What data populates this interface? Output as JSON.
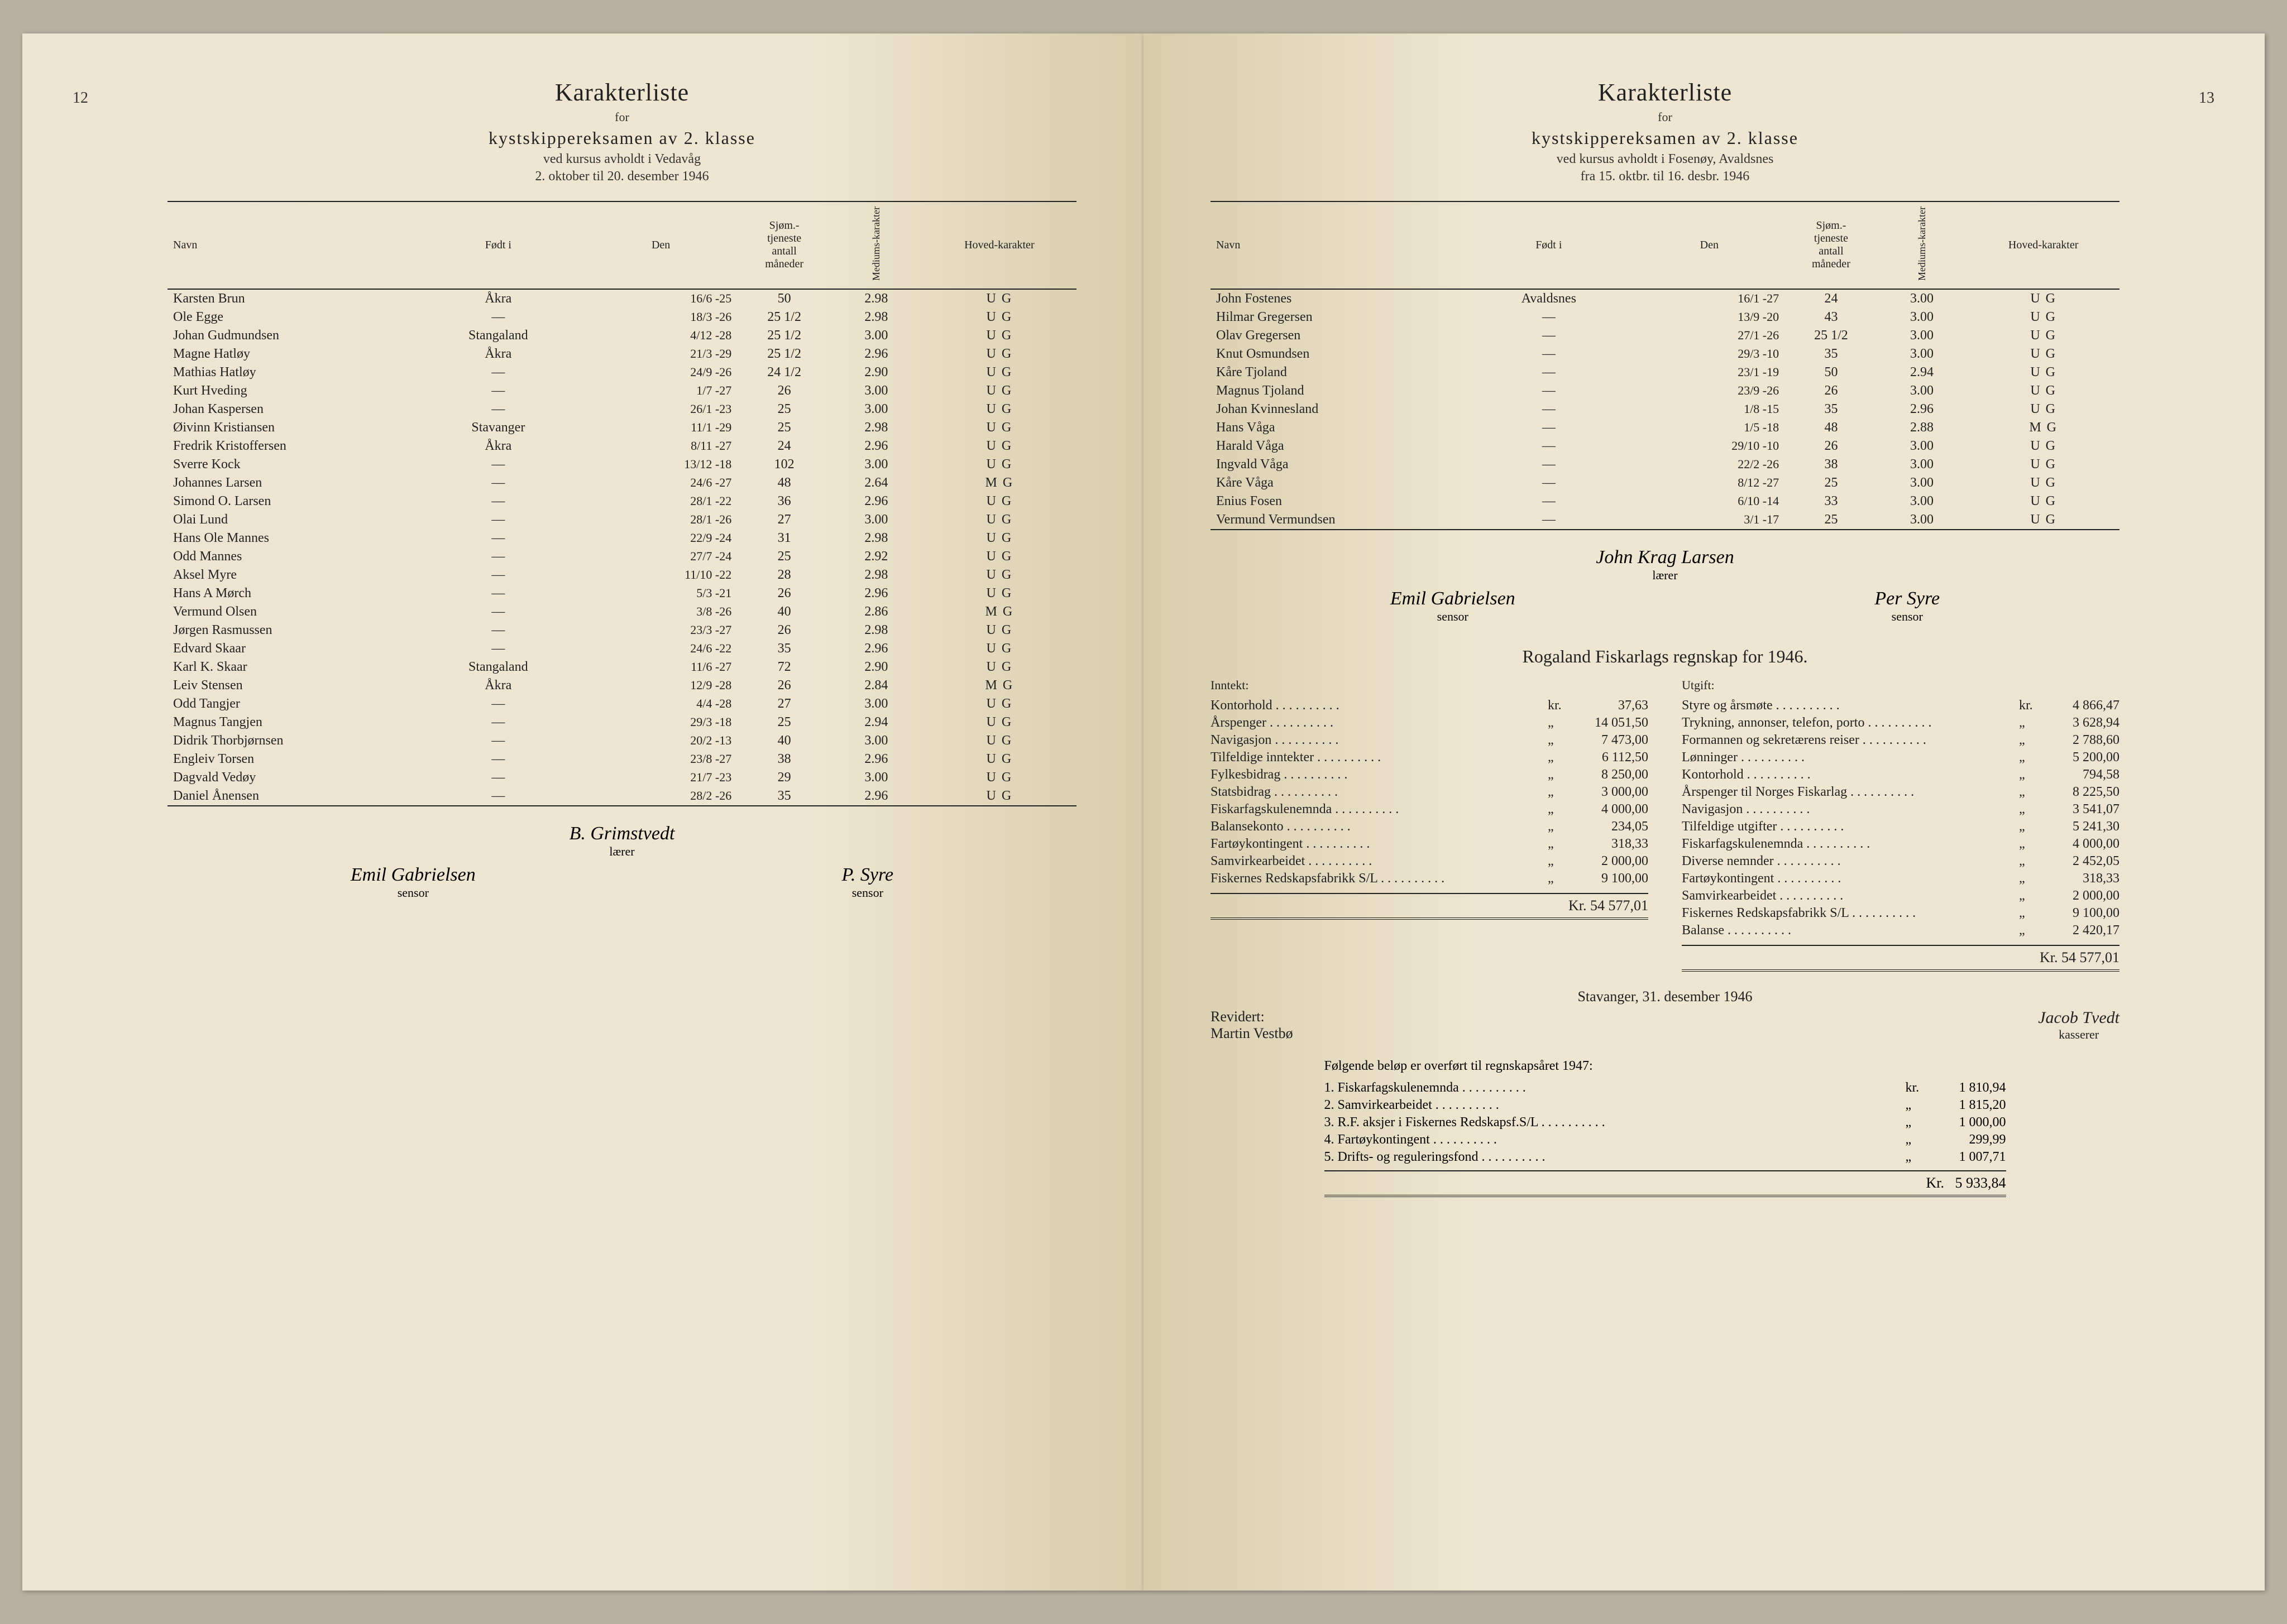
{
  "left": {
    "page_num": "12",
    "title": "Karakterliste",
    "for": "for",
    "subtitle": "kystskippereksamen av 2. klasse",
    "line1": "ved kursus avholdt i Vedavåg",
    "line2": "2. oktober til 20. desember 1946",
    "columns": {
      "navn": "Navn",
      "fodt": "Født i",
      "den": "Den",
      "mnd_top": "Sjøm.-",
      "mnd_mid": "tjeneste",
      "mnd_bot": "antall",
      "mnd_last": "måneder",
      "medium": "Mediums-karakter",
      "hoved": "Hoved-karakter"
    },
    "rows": [
      {
        "n": "Karsten Brun",
        "f": "Åkra",
        "d": "16/6 -25",
        "m": "50",
        "med": "2.98",
        "hk": "U G"
      },
      {
        "n": "Ole Egge",
        "f": "—",
        "d": "18/3 -26",
        "m": "25 1/2",
        "med": "2.98",
        "hk": "U G"
      },
      {
        "n": "Johan Gudmundsen",
        "f": "Stangaland",
        "d": "4/12 -28",
        "m": "25 1/2",
        "med": "3.00",
        "hk": "U G"
      },
      {
        "n": "Magne Hatløy",
        "f": "Åkra",
        "d": "21/3 -29",
        "m": "25 1/2",
        "med": "2.96",
        "hk": "U G"
      },
      {
        "n": "Mathias Hatløy",
        "f": "—",
        "d": "24/9 -26",
        "m": "24 1/2",
        "med": "2.90",
        "hk": "U G"
      },
      {
        "n": "Kurt Hveding",
        "f": "—",
        "d": "1/7 -27",
        "m": "26",
        "med": "3.00",
        "hk": "U G"
      },
      {
        "n": "Johan Kaspersen",
        "f": "—",
        "d": "26/1 -23",
        "m": "25",
        "med": "3.00",
        "hk": "U G"
      },
      {
        "n": "Øivinn Kristiansen",
        "f": "Stavanger",
        "d": "11/1 -29",
        "m": "25",
        "med": "2.98",
        "hk": "U G"
      },
      {
        "n": "Fredrik Kristoffersen",
        "f": "Åkra",
        "d": "8/11 -27",
        "m": "24",
        "med": "2.96",
        "hk": "U G"
      },
      {
        "n": "Sverre Kock",
        "f": "—",
        "d": "13/12 -18",
        "m": "102",
        "med": "3.00",
        "hk": "U G"
      },
      {
        "n": "Johannes Larsen",
        "f": "—",
        "d": "24/6 -27",
        "m": "48",
        "med": "2.64",
        "hk": "M G"
      },
      {
        "n": "Simond O. Larsen",
        "f": "—",
        "d": "28/1 -22",
        "m": "36",
        "med": "2.96",
        "hk": "U G"
      },
      {
        "n": "Olai Lund",
        "f": "—",
        "d": "28/1 -26",
        "m": "27",
        "med": "3.00",
        "hk": "U G"
      },
      {
        "n": "Hans Ole Mannes",
        "f": "—",
        "d": "22/9 -24",
        "m": "31",
        "med": "2.98",
        "hk": "U G"
      },
      {
        "n": "Odd Mannes",
        "f": "—",
        "d": "27/7 -24",
        "m": "25",
        "med": "2.92",
        "hk": "U G"
      },
      {
        "n": "Aksel Myre",
        "f": "—",
        "d": "11/10 -22",
        "m": "28",
        "med": "2.98",
        "hk": "U G"
      },
      {
        "n": "Hans A Mørch",
        "f": "—",
        "d": "5/3 -21",
        "m": "26",
        "med": "2.96",
        "hk": "U G"
      },
      {
        "n": "Vermund Olsen",
        "f": "—",
        "d": "3/8 -26",
        "m": "40",
        "med": "2.86",
        "hk": "M G"
      },
      {
        "n": "Jørgen Rasmussen",
        "f": "—",
        "d": "23/3 -27",
        "m": "26",
        "med": "2.98",
        "hk": "U G"
      },
      {
        "n": "Edvard Skaar",
        "f": "—",
        "d": "24/6 -22",
        "m": "35",
        "med": "2.96",
        "hk": "U G"
      },
      {
        "n": "Karl K. Skaar",
        "f": "Stangaland",
        "d": "11/6 -27",
        "m": "72",
        "med": "2.90",
        "hk": "U G"
      },
      {
        "n": "Leiv Stensen",
        "f": "Åkra",
        "d": "12/9 -28",
        "m": "26",
        "med": "2.84",
        "hk": "M G"
      },
      {
        "n": "Odd Tangjer",
        "f": "—",
        "d": "4/4 -28",
        "m": "27",
        "med": "3.00",
        "hk": "U G"
      },
      {
        "n": "Magnus Tangjen",
        "f": "—",
        "d": "29/3 -18",
        "m": "25",
        "med": "2.94",
        "hk": "U G"
      },
      {
        "n": "Didrik Thorbjørnsen",
        "f": "—",
        "d": "20/2 -13",
        "m": "40",
        "med": "3.00",
        "hk": "U G"
      },
      {
        "n": "Engleiv Torsen",
        "f": "—",
        "d": "23/8 -27",
        "m": "38",
        "med": "2.96",
        "hk": "U G"
      },
      {
        "n": "Dagvald Vedøy",
        "f": "—",
        "d": "21/7 -23",
        "m": "29",
        "med": "3.00",
        "hk": "U G"
      },
      {
        "n": "Daniel Ånensen",
        "f": "—",
        "d": "28/2 -26",
        "m": "35",
        "med": "2.96",
        "hk": "U G"
      }
    ],
    "teacher": {
      "name": "B. Grimstvedt",
      "role": "lærer"
    },
    "sensors": [
      {
        "name": "Emil Gabrielsen",
        "role": "sensor"
      },
      {
        "name": "P. Syre",
        "role": "sensor"
      }
    ]
  },
  "right": {
    "page_num": "13",
    "title": "Karakterliste",
    "for": "for",
    "subtitle": "kystskippereksamen av 2. klasse",
    "line1": "ved kursus avholdt i Fosenøy, Avaldsnes",
    "line2": "fra 15. oktbr. til 16. desbr. 1946",
    "rows": [
      {
        "n": "John Fostenes",
        "f": "Avaldsnes",
        "d": "16/1 -27",
        "m": "24",
        "med": "3.00",
        "hk": "U G"
      },
      {
        "n": "Hilmar Gregersen",
        "f": "—",
        "d": "13/9 -20",
        "m": "43",
        "med": "3.00",
        "hk": "U G"
      },
      {
        "n": "Olav Gregersen",
        "f": "—",
        "d": "27/1 -26",
        "m": "25 1/2",
        "med": "3.00",
        "hk": "U G"
      },
      {
        "n": "Knut Osmundsen",
        "f": "—",
        "d": "29/3 -10",
        "m": "35",
        "med": "3.00",
        "hk": "U G"
      },
      {
        "n": "Kåre Tjoland",
        "f": "—",
        "d": "23/1 -19",
        "m": "50",
        "med": "2.94",
        "hk": "U G"
      },
      {
        "n": "Magnus Tjoland",
        "f": "—",
        "d": "23/9 -26",
        "m": "26",
        "med": "3.00",
        "hk": "U G"
      },
      {
        "n": "Johan Kvinnesland",
        "f": "—",
        "d": "1/8 -15",
        "m": "35",
        "med": "2.96",
        "hk": "U G"
      },
      {
        "n": "Hans Våga",
        "f": "—",
        "d": "1/5 -18",
        "m": "48",
        "med": "2.88",
        "hk": "M G"
      },
      {
        "n": "Harald Våga",
        "f": "—",
        "d": "29/10 -10",
        "m": "26",
        "med": "3.00",
        "hk": "U G"
      },
      {
        "n": "Ingvald Våga",
        "f": "—",
        "d": "22/2 -26",
        "m": "38",
        "med": "3.00",
        "hk": "U G"
      },
      {
        "n": "Kåre Våga",
        "f": "—",
        "d": "8/12 -27",
        "m": "25",
        "med": "3.00",
        "hk": "U G"
      },
      {
        "n": "Enius Fosen",
        "f": "—",
        "d": "6/10 -14",
        "m": "33",
        "med": "3.00",
        "hk": "U G"
      },
      {
        "n": "Vermund Vermundsen",
        "f": "—",
        "d": "3/1 -17",
        "m": "25",
        "med": "3.00",
        "hk": "U G"
      }
    ],
    "teacher": {
      "name": "John Krag Larsen",
      "role": "lærer"
    },
    "sensors": [
      {
        "name": "Emil Gabrielsen",
        "role": "sensor"
      },
      {
        "name": "Per Syre",
        "role": "sensor"
      }
    ],
    "regnskap_title": "Rogaland Fiskarlags regnskap for 1946.",
    "inntekt_hdr": "Inntekt:",
    "utgift_hdr": "Utgift:",
    "inntekt": [
      {
        "l": "Kontorhold",
        "c": "kr.",
        "a": "37,63"
      },
      {
        "l": "Årspenger",
        "c": "„",
        "a": "14 051,50"
      },
      {
        "l": "Navigasjon",
        "c": "„",
        "a": "7 473,00"
      },
      {
        "l": "Tilfeldige inntekter",
        "c": "„",
        "a": "6 112,50"
      },
      {
        "l": "Fylkesbidrag",
        "c": "„",
        "a": "8 250,00"
      },
      {
        "l": "Statsbidrag",
        "c": "„",
        "a": "3 000,00"
      },
      {
        "l": "Fiskarfagskulenemnda",
        "c": "„",
        "a": "4 000,00"
      },
      {
        "l": "Balansekonto",
        "c": "„",
        "a": "234,05"
      },
      {
        "l": "Fartøykontingent",
        "c": "„",
        "a": "318,33"
      },
      {
        "l": "Samvirkearbeidet",
        "c": "„",
        "a": "2 000,00"
      },
      {
        "l": "Fiskernes Redskapsfabrikk S/L",
        "c": "„",
        "a": "9 100,00"
      }
    ],
    "utgift": [
      {
        "l": "Styre og årsmøte",
        "c": "kr.",
        "a": "4 866,47"
      },
      {
        "l": "Trykning, annonser, telefon, porto",
        "c": "„",
        "a": "3 628,94"
      },
      {
        "l": "Formannen og sekretærens reiser",
        "c": "„",
        "a": "2 788,60"
      },
      {
        "l": "Lønninger",
        "c": "„",
        "a": "5 200,00"
      },
      {
        "l": "Kontorhold",
        "c": "„",
        "a": "794,58"
      },
      {
        "l": "Årspenger til Norges Fiskarlag",
        "c": "„",
        "a": "8 225,50"
      },
      {
        "l": "Navigasjon",
        "c": "„",
        "a": "3 541,07"
      },
      {
        "l": "Tilfeldige utgifter",
        "c": "„",
        "a": "5 241,30"
      },
      {
        "l": "Fiskarfagskulenemnda",
        "c": "„",
        "a": "4 000,00"
      },
      {
        "l": "Diverse nemnder",
        "c": "„",
        "a": "2 452,05"
      },
      {
        "l": "Fartøykontingent",
        "c": "„",
        "a": "318,33"
      },
      {
        "l": "Samvirkearbeidet",
        "c": "„",
        "a": "2 000,00"
      },
      {
        "l": "Fiskernes Redskapsfabrikk S/L",
        "c": "„",
        "a": "9 100,00"
      },
      {
        "l": "Balanse",
        "c": "„",
        "a": "2 420,17"
      }
    ],
    "total_label": "Kr.",
    "total": "54 577,01",
    "place_date": "Stavanger, 31. desember 1946",
    "revidert": "Revidert:",
    "revisor": "Martin Vestbø",
    "kasserer": {
      "name": "Jacob Tvedt",
      "role": "kasserer"
    },
    "carry_title": "Følgende beløp er overført til regnskapsåret 1947:",
    "carry": [
      {
        "l": "1. Fiskarfagskulenemnda",
        "c": "kr.",
        "a": "1 810,94"
      },
      {
        "l": "2. Samvirkearbeidet",
        "c": "„",
        "a": "1 815,20"
      },
      {
        "l": "3. R.F. aksjer i Fiskernes Redskapsf.S/L",
        "c": "„",
        "a": "1 000,00"
      },
      {
        "l": "4. Fartøykontingent",
        "c": "„",
        "a": "299,99"
      },
      {
        "l": "5. Drifts- og reguleringsfond",
        "c": "„",
        "a": "1 007,71"
      }
    ],
    "carry_total_label": "Kr.",
    "carry_total": "5 933,84"
  }
}
